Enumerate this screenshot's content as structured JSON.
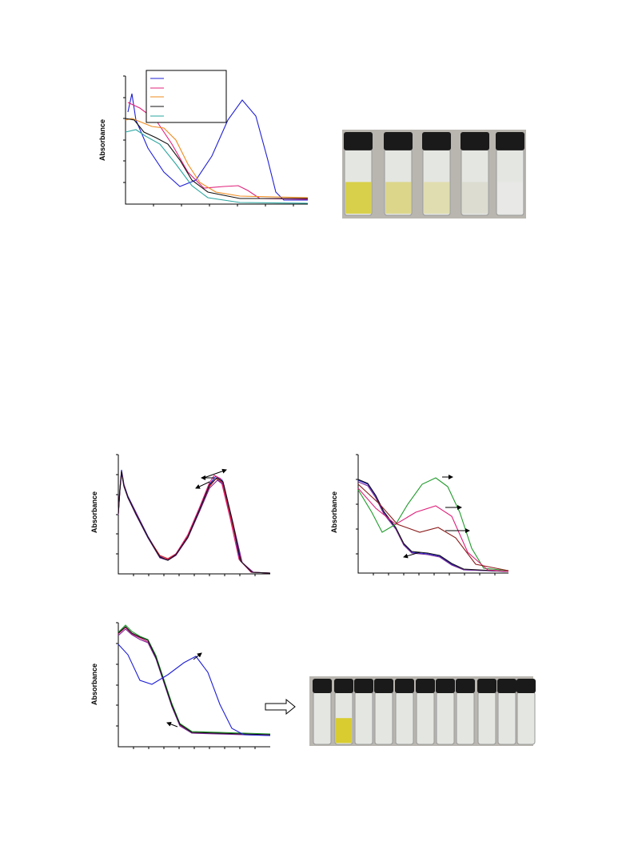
{
  "figures": [
    {
      "y_label": "Absorbance"
    },
    {
      "y_label": "Absorbance"
    },
    {
      "y_label": "Absorbance"
    },
    {
      "y_label": "Absorbance"
    }
  ]
}
